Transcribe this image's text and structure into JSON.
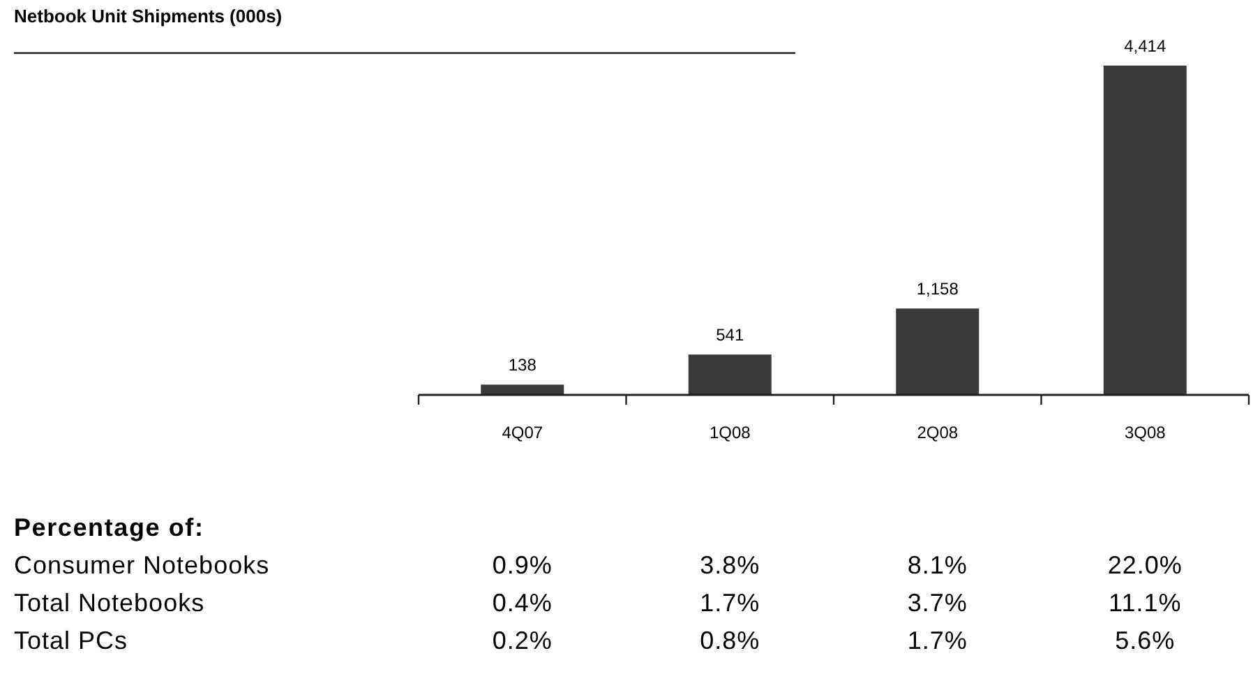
{
  "chart_data": {
    "type": "bar",
    "title": "Netbook Unit Shipments (000s)",
    "categories": [
      "4Q07",
      "1Q08",
      "2Q08",
      "3Q08"
    ],
    "values": [
      138,
      541,
      1158,
      4414
    ],
    "value_labels": [
      "138",
      "541",
      "1,158",
      "4,414"
    ],
    "color": "#3a3a3a",
    "annotations": [
      "Percentage of:",
      "Consumer Notebooks",
      "0.9%",
      "3.8%",
      "8.1%",
      "22.0%",
      "Total Notebooks",
      "0.4%",
      "1.7%",
      "3.7%",
      "11.1%",
      "Total PCs",
      "0.2%",
      "0.8%",
      "1.7%",
      "5.6%"
    ]
  }
}
